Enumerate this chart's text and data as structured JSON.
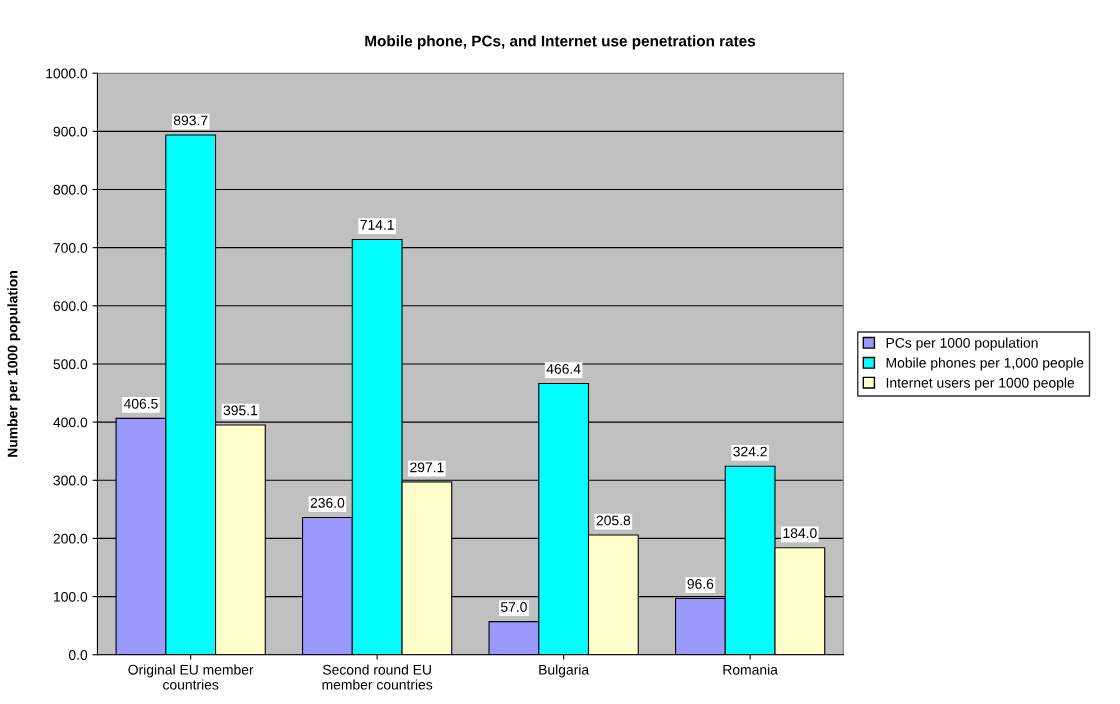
{
  "chart_data": {
    "type": "bar",
    "title": "Mobile phone, PCs, and Internet use penetration rates",
    "ylabel": "Number per 1000 population",
    "categories": [
      "Original EU member\ncountries",
      "Second round EU\nmember countries",
      "Bulgaria",
      "Romania"
    ],
    "series": [
      {
        "name": "PCs per 1000 population",
        "color": "#9999ff",
        "values": [
          406.5,
          236.0,
          57.0,
          96.6
        ],
        "value_labels": [
          "406.5",
          "236.0",
          "57.0",
          "96.6"
        ]
      },
      {
        "name": "Mobile phones per 1,000 people",
        "color": "#00ffff",
        "values": [
          893.7,
          714.1,
          466.4,
          324.2
        ],
        "value_labels": [
          "893.7",
          "714.1",
          "466.4",
          "324.2"
        ]
      },
      {
        "name": "Internet users per 1000 people",
        "color": "#ffffcc",
        "values": [
          395.1,
          297.1,
          205.8,
          184.0
        ],
        "value_labels": [
          "395.1",
          "297.1",
          "205.8",
          "184.0"
        ]
      }
    ],
    "ylim": [
      0,
      1000
    ],
    "yticks": [
      {
        "value": 0,
        "label": "0.0"
      },
      {
        "value": 100,
        "label": "100.0"
      },
      {
        "value": 200,
        "label": "200.0"
      },
      {
        "value": 300,
        "label": "300.0"
      },
      {
        "value": 400,
        "label": "400.0"
      },
      {
        "value": 500,
        "label": "500.0"
      },
      {
        "value": 600,
        "label": "600.0"
      },
      {
        "value": 700,
        "label": "700.0"
      },
      {
        "value": 800,
        "label": "800.0"
      },
      {
        "value": 900,
        "label": "900.0"
      },
      {
        "value": 1000,
        "label": "1000.0"
      }
    ],
    "grid": "y",
    "legend": "right"
  }
}
